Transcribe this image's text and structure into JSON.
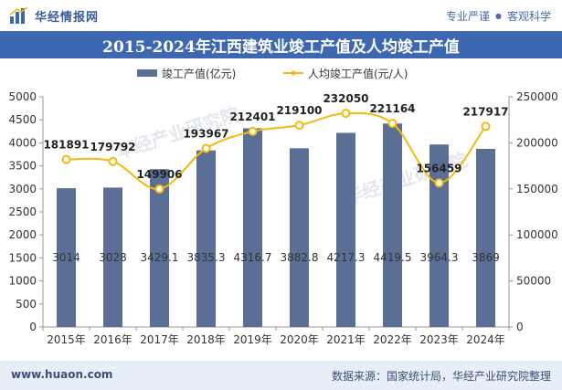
{
  "header": {
    "brand": "华经情报网",
    "tagline_left": "专业严谨",
    "tagline_sep": "●",
    "tagline_right": "客观科学"
  },
  "chart_data": {
    "type": "bar",
    "title": "2015-2024年江西建筑业竣工产值及人均竣工产值",
    "categories": [
      "2015年",
      "2016年",
      "2017年",
      "2018年",
      "2019年",
      "2020年",
      "2021年",
      "2022年",
      "2023年",
      "2024年"
    ],
    "series": [
      {
        "name": "竣工产值(亿元)",
        "type": "bar",
        "axis": "left",
        "color": "#5b6f96",
        "values": [
          3014,
          3028,
          3429.1,
          3835.3,
          4316.7,
          3882.8,
          4217.3,
          4419.5,
          3964.3,
          3869
        ],
        "labels": [
          "3014",
          "3028",
          "3429.1",
          "3835.3",
          "4316.7",
          "3882.8",
          "4217.3",
          "4419.5",
          "3964.3",
          "3869"
        ]
      },
      {
        "name": "人均竣工产值(元/人)",
        "type": "line",
        "axis": "right",
        "color": "#f2b90f",
        "values": [
          181891,
          179792,
          149906,
          193967,
          212401,
          219100,
          232050,
          221164,
          156459,
          217917
        ],
        "labels": [
          "181891",
          "179792",
          "149906",
          "193967",
          "212401",
          "219100",
          "232050",
          "221164",
          "156459",
          "217917"
        ]
      }
    ],
    "left_axis": {
      "min": 0,
      "max": 5000,
      "ticks": [
        "0",
        "500",
        "1000",
        "1500",
        "2000",
        "2500",
        "3000",
        "3500",
        "4000",
        "4500",
        "5000"
      ]
    },
    "right_axis": {
      "min": 0,
      "max": 250000,
      "ticks": [
        "0",
        "50000",
        "100000",
        "150000",
        "200000",
        "250000"
      ]
    },
    "legend_position": "top-center",
    "grid": false
  },
  "footer": {
    "url": "www.huaon.com",
    "source": "数据来源：国家统计局，华经产业研究院整理"
  },
  "watermark": "华经产业研究院"
}
